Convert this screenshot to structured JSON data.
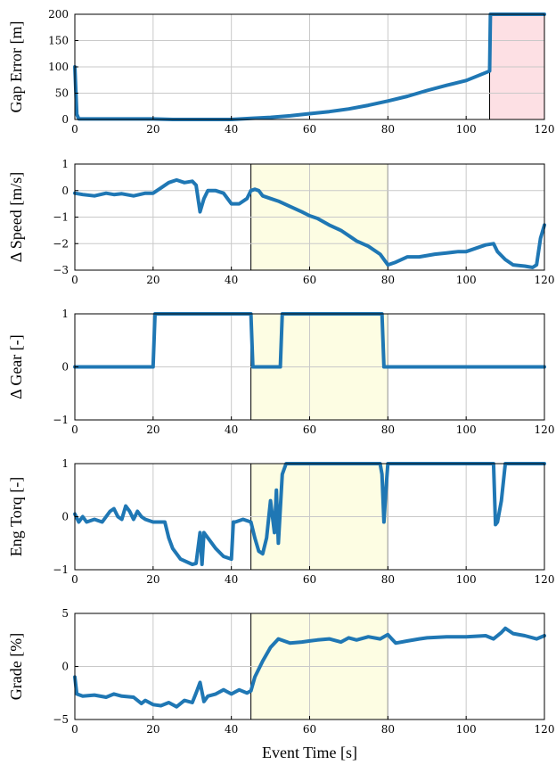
{
  "figure": {
    "xlabel": "Event Time [s]"
  },
  "colors": {
    "series": "#1f77b4",
    "highlight_yellow": "#fdfde3",
    "highlight_red": "#fde0e4"
  },
  "chart_data": [
    {
      "type": "line",
      "ylabel": "Gap Error [m]",
      "xlim": [
        0,
        120
      ],
      "ylim": [
        0,
        200
      ],
      "xticks": [
        0,
        20,
        40,
        60,
        80,
        100,
        120
      ],
      "yticks": [
        0,
        50,
        100,
        150,
        200
      ],
      "grid": true,
      "highlight": {
        "x0": 106,
        "x1": 120,
        "color": "red"
      },
      "series": [
        {
          "x": [
            0,
            0.5,
            1,
            5,
            10,
            20,
            25,
            30,
            35,
            40,
            45,
            50,
            55,
            60,
            65,
            70,
            75,
            80,
            85,
            90,
            95,
            100,
            106,
            106.2,
            107,
            110,
            115,
            120
          ],
          "y": [
            100,
            10,
            1,
            1,
            1,
            1,
            0,
            -1,
            0,
            0,
            2,
            4,
            7,
            11,
            15,
            20,
            27,
            35,
            44,
            55,
            65,
            74,
            92,
            200,
            200,
            200,
            200,
            200
          ]
        }
      ]
    },
    {
      "type": "line",
      "ylabel": "Δ Speed [m/s]",
      "xlim": [
        0,
        120
      ],
      "ylim": [
        -3,
        1
      ],
      "xticks": [
        0,
        20,
        40,
        60,
        80,
        100,
        120
      ],
      "yticks": [
        -3,
        -2,
        -1,
        0,
        1
      ],
      "grid": true,
      "highlight": {
        "x0": 45,
        "x1": 80,
        "color": "yellow"
      },
      "series": [
        {
          "x": [
            0,
            2,
            5,
            8,
            10,
            12,
            15,
            18,
            20,
            22,
            24,
            26,
            28,
            30,
            31,
            32,
            33,
            34,
            36,
            38,
            40,
            42,
            44,
            45,
            46,
            47,
            48,
            50,
            52,
            55,
            58,
            60,
            62,
            65,
            68,
            70,
            72,
            75,
            78,
            80,
            81,
            82,
            85,
            88,
            90,
            92,
            95,
            98,
            100,
            103,
            105,
            107,
            108,
            110,
            112,
            115,
            117,
            118,
            119,
            120
          ],
          "y": [
            -0.1,
            -0.15,
            -0.2,
            -0.1,
            -0.15,
            -0.12,
            -0.2,
            -0.1,
            -0.1,
            0.1,
            0.3,
            0.4,
            0.3,
            0.35,
            0.2,
            -0.8,
            -0.3,
            0,
            0,
            -0.1,
            -0.5,
            -0.5,
            -0.3,
            0,
            0.05,
            0,
            -0.2,
            -0.3,
            -0.4,
            -0.6,
            -0.8,
            -0.95,
            -1.05,
            -1.3,
            -1.5,
            -1.7,
            -1.9,
            -2.1,
            -2.4,
            -2.8,
            -2.75,
            -2.7,
            -2.5,
            -2.5,
            -2.45,
            -2.4,
            -2.35,
            -2.3,
            -2.3,
            -2.15,
            -2.05,
            -2.0,
            -2.3,
            -2.6,
            -2.8,
            -2.85,
            -2.9,
            -2.8,
            -1.8,
            -1.3
          ]
        }
      ]
    },
    {
      "type": "line",
      "ylabel": "Δ Gear [-]",
      "xlim": [
        0,
        120
      ],
      "ylim": [
        -1,
        1
      ],
      "xticks": [
        0,
        20,
        40,
        60,
        80,
        100,
        120
      ],
      "yticks": [
        -1,
        0,
        1
      ],
      "grid": true,
      "highlight": {
        "x0": 45,
        "x1": 80,
        "color": "yellow"
      },
      "series": [
        {
          "x": [
            0,
            20,
            20.5,
            45,
            45.5,
            52.5,
            53,
            78.5,
            79,
            120
          ],
          "y": [
            0,
            0,
            1,
            1,
            0,
            0,
            1,
            1,
            0,
            0
          ]
        }
      ]
    },
    {
      "type": "line",
      "ylabel": "Eng Torq [-]",
      "xlim": [
        0,
        120
      ],
      "ylim": [
        -1,
        1
      ],
      "xticks": [
        0,
        20,
        40,
        60,
        80,
        100,
        120
      ],
      "yticks": [
        -1,
        0,
        1
      ],
      "grid": true,
      "highlight": {
        "x0": 45,
        "x1": 80,
        "color": "yellow"
      },
      "series": [
        {
          "x": [
            0,
            1,
            2,
            3,
            5,
            7,
            8,
            9,
            10,
            11,
            12,
            13,
            14,
            15,
            16,
            17,
            18,
            20,
            23,
            24,
            25,
            27,
            30,
            31,
            32,
            32.5,
            33,
            34,
            36,
            38,
            40,
            40.5,
            41,
            43,
            45,
            46,
            47,
            48,
            49,
            50,
            51,
            51.5,
            52,
            53,
            54,
            56,
            60,
            65,
            70,
            75,
            78,
            78.5,
            79,
            79.5,
            80,
            85,
            90,
            95,
            100,
            105,
            107,
            107.5,
            108,
            109,
            110,
            115,
            120
          ],
          "y": [
            0.05,
            -0.1,
            0,
            -0.1,
            -0.05,
            -0.1,
            0,
            0.1,
            0.15,
            0,
            -0.05,
            0.2,
            0.1,
            -0.05,
            0.1,
            0,
            -0.05,
            -0.1,
            -0.1,
            -0.4,
            -0.6,
            -0.8,
            -0.9,
            -0.88,
            -0.3,
            -0.9,
            -0.3,
            -0.4,
            -0.6,
            -0.75,
            -0.8,
            -0.1,
            -0.1,
            -0.05,
            -0.1,
            -0.4,
            -0.65,
            -0.7,
            -0.4,
            0.3,
            -0.3,
            0.5,
            -0.5,
            0.8,
            1,
            1,
            1,
            1,
            1,
            1,
            1,
            0.8,
            -0.1,
            0.5,
            1,
            1,
            1,
            1,
            1,
            1,
            1,
            -0.15,
            -0.1,
            0.3,
            1,
            1,
            1
          ]
        }
      ]
    },
    {
      "type": "line",
      "ylabel": "Grade [%]",
      "xlim": [
        0,
        120
      ],
      "ylim": [
        -5,
        5
      ],
      "xticks": [
        0,
        20,
        40,
        60,
        80,
        100,
        120
      ],
      "yticks": [
        -5,
        0,
        5
      ],
      "grid": true,
      "highlight": {
        "x0": 45,
        "x1": 80,
        "color": "yellow"
      },
      "series": [
        {
          "x": [
            0,
            0.5,
            2,
            5,
            8,
            10,
            12,
            15,
            17,
            18,
            20,
            22,
            24,
            26,
            28,
            30,
            31,
            32,
            33,
            34,
            36,
            38,
            40,
            42,
            44,
            45,
            46,
            48,
            50,
            52,
            55,
            58,
            60,
            62,
            65,
            68,
            70,
            72,
            75,
            78,
            80,
            81,
            82,
            85,
            88,
            90,
            95,
            100,
            105,
            107,
            109,
            110,
            112,
            115,
            118,
            120
          ],
          "y": [
            -1,
            -2.6,
            -2.8,
            -2.7,
            -2.9,
            -2.6,
            -2.8,
            -2.9,
            -3.5,
            -3.2,
            -3.6,
            -3.7,
            -3.4,
            -3.8,
            -3.2,
            -3.4,
            -2.5,
            -1.5,
            -3.3,
            -2.8,
            -2.6,
            -2.2,
            -2.6,
            -2.2,
            -2.5,
            -2.3,
            -1,
            0.5,
            1.8,
            2.6,
            2.2,
            2.3,
            2.4,
            2.5,
            2.6,
            2.3,
            2.7,
            2.5,
            2.8,
            2.6,
            3.0,
            2.6,
            2.2,
            2.4,
            2.6,
            2.7,
            2.8,
            2.8,
            2.9,
            2.6,
            3.2,
            3.6,
            3.1,
            2.9,
            2.6,
            2.9
          ]
        }
      ]
    }
  ]
}
